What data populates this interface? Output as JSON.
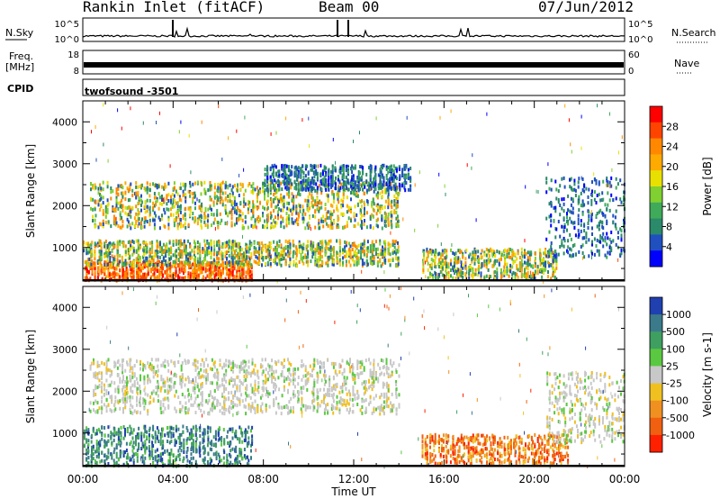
{
  "header": {
    "title": "Rankin Inlet (fitACF)",
    "beam": "Beam 00",
    "date": "07/Jun/2012"
  },
  "top_panels": {
    "nsky_label": "N.Sky",
    "nsky_ticks": [
      "10^5",
      "10^0"
    ],
    "nsearch_label": "N.Search",
    "nsearch_ticks": [
      "10^5",
      "10^0"
    ],
    "freq_label": "Freq.",
    "freq_unit": "[MHz]",
    "freq_ticks": [
      "18",
      "8"
    ],
    "nave_label": "Nave",
    "nave_ticks": [
      "60",
      "0"
    ],
    "cpid_label": "CPID",
    "cpid_value": "twofsound -3501"
  },
  "chart_data": [
    {
      "type": "heatmap",
      "panel": "power",
      "ylabel": "Slant Range [km]",
      "yticks": [
        "1000",
        "2000",
        "3000",
        "4000"
      ],
      "ylim": [
        200,
        4500
      ],
      "colorbar_label": "Power [dB]",
      "colorbar_ticks": [
        "28",
        "24",
        "20",
        "16",
        "12",
        "8",
        "4"
      ],
      "colorbar_colors": [
        "#ff0000",
        "#ff4400",
        "#ff8800",
        "#ffaa00",
        "#e8e000",
        "#7fd030",
        "#3faa5a",
        "#2a8a6a",
        "#2050c0",
        "#0000ff"
      ],
      "regions": [
        {
          "t0": 0.0,
          "t1": 7.5,
          "r0": 250,
          "r1": 700,
          "level": "high"
        },
        {
          "t0": 0.0,
          "t1": 14.0,
          "r0": 600,
          "r1": 1200,
          "level": "medium"
        },
        {
          "t0": 0.3,
          "t1": 14.0,
          "r0": 1500,
          "r1": 2600,
          "level": "medium"
        },
        {
          "t0": 8.0,
          "t1": 14.5,
          "r0": 2400,
          "r1": 3000,
          "level": "low"
        },
        {
          "t0": 15.0,
          "t1": 21.0,
          "r0": 300,
          "r1": 1000,
          "level": "medium"
        },
        {
          "t0": 20.5,
          "t1": 24.0,
          "r0": 800,
          "r1": 2700,
          "level": "low"
        }
      ]
    },
    {
      "type": "heatmap",
      "panel": "velocity",
      "ylabel": "Slant Range [km]",
      "yticks": [
        "1000",
        "2000",
        "3000",
        "4000"
      ],
      "ylim": [
        200,
        4500
      ],
      "xlabel": "Time UT",
      "xticks": [
        "00:00",
        "04:00",
        "08:00",
        "12:00",
        "16:00",
        "20:00",
        "00:00"
      ],
      "colorbar_label": "Velocity [m s-1]",
      "colorbar_ticks": [
        "1000",
        "500",
        "100",
        "25",
        "-25",
        "-100",
        "-500",
        "-1000"
      ],
      "colorbar_colors": [
        "#2040b0",
        "#3a7a8a",
        "#3f9f60",
        "#5ac840",
        "#c8c8c8",
        "#f0c020",
        "#f09020",
        "#f06010",
        "#ff2000"
      ],
      "regions": [
        {
          "t0": 0.0,
          "t1": 7.5,
          "r0": 250,
          "r1": 1200,
          "level": "positive"
        },
        {
          "t0": 0.3,
          "t1": 14.0,
          "r0": 1500,
          "r1": 2800,
          "level": "near-zero"
        },
        {
          "t0": 15.0,
          "t1": 21.5,
          "r0": 300,
          "r1": 1000,
          "level": "negative"
        },
        {
          "t0": 20.5,
          "t1": 24.0,
          "r0": 800,
          "r1": 2500,
          "level": "near-zero"
        }
      ]
    }
  ]
}
